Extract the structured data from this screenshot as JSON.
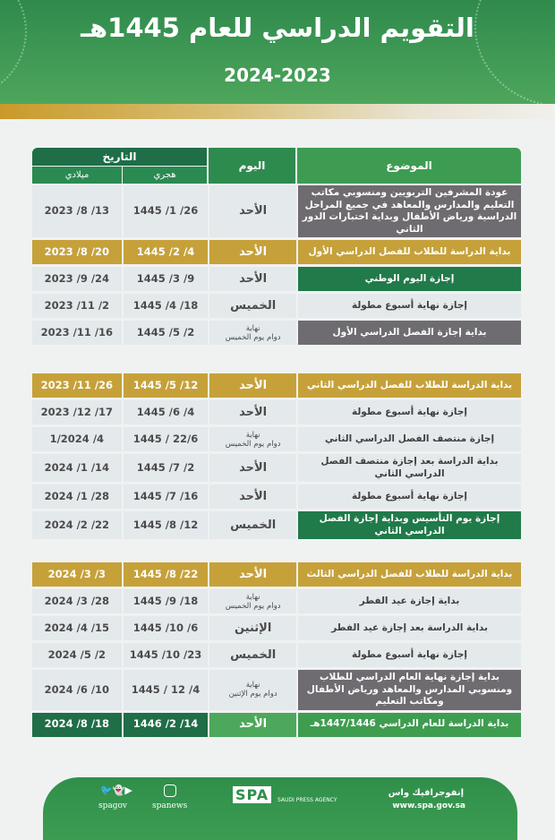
{
  "header": {
    "title": "التقويم الدراسي للعام 1445هـ",
    "years": "2024-2023"
  },
  "columns": {
    "date": "التاريخ",
    "gregorian": "ميلادي",
    "hijri": "هجري",
    "day": "اليوم",
    "topic": "الموضوع"
  },
  "colors": {
    "green": "#2e8b4e",
    "dark_green": "#1f6e48",
    "gold": "#c6a13a",
    "grey": "#6e6c70",
    "row": "#e4e9ec"
  },
  "sections": [
    {
      "rows": [
        {
          "style": "topic-grey",
          "topic": "عودة المشرفين التربويين ومنسوبي مكاتب التعليم والمدارس والمعاهد في جميع المراحل الدراسية ورياض الأطفال وبداية اختبارات الدور الثاني",
          "day": "الأحد",
          "hijri": "26/ 1/ 1445",
          "gregorian": "13/ 8/ 2023"
        },
        {
          "style": "gold",
          "topic": "بداية الدراسة للطلاب للفصل الدراسي الأول",
          "day": "الأحد",
          "hijri": "4/ 2/ 1445",
          "gregorian": "20/ 8/ 2023"
        },
        {
          "style": "topic-green",
          "topic": "إجازة اليوم الوطني",
          "day": "الأحد",
          "hijri": "9/ 3/ 1445",
          "gregorian": "24/ 9/ 2023"
        },
        {
          "style": "plain",
          "topic": "إجازة نهاية أسبوع مطولة",
          "day": "الخميس",
          "hijri": "18/ 4/ 1445",
          "gregorian": "2/ 11/ 2023"
        },
        {
          "style": "topic-grey",
          "topic": "بداية إجازة الفصل الدراسي الأول",
          "day": "نهاية\nدوام يوم الخميس",
          "hijri": "2/ 5/ 1445",
          "gregorian": "16/ 11/ 2023"
        }
      ]
    },
    {
      "rows": [
        {
          "style": "gold",
          "topic": "بداية الدراسة للطلاب للفصل الدراسي الثاني",
          "day": "الأحد",
          "hijri": "12/ 5/ 1445",
          "gregorian": "26/ 11/ 2023"
        },
        {
          "style": "plain",
          "topic": "إجازة نهاية أسبوع مطولة",
          "day": "الأحد",
          "hijri": "4/ 6/ 1445",
          "gregorian": "17/ 12/ 2023"
        },
        {
          "style": "plain",
          "topic": "إجازة منتصف الفصل الدراسي الثاني",
          "day": "نهاية\nدوام يوم الخميس",
          "hijri": "22/6 / 1445",
          "gregorian": "4/ 1/2024"
        },
        {
          "style": "plain",
          "topic": "بداية الدراسة بعد إجازة منتصف الفصل الدراسي الثاني",
          "day": "الأحد",
          "hijri": "2/ 7/ 1445",
          "gregorian": "14/ 1/ 2024"
        },
        {
          "style": "plain",
          "topic": "إجازة نهاية أسبوع مطولة",
          "day": "الأحد",
          "hijri": "16/ 7/ 1445",
          "gregorian": "28/ 1/ 2024"
        },
        {
          "style": "topic-green",
          "topic": "إجازة يوم التأسيس وبداية إجازة الفصل الدراسي الثاني",
          "day": "الخميس",
          "hijri": "12/ 8/ 1445",
          "gregorian": "22/ 2/ 2024"
        }
      ]
    },
    {
      "rows": [
        {
          "style": "gold",
          "topic": "بداية الدراسة للطلاب للفصل الدراسي الثالث",
          "day": "الأحد",
          "hijri": "22/ 8/ 1445",
          "gregorian": "3/ 3/ 2024"
        },
        {
          "style": "plain",
          "topic": "بداية إجازة عيد الفطر",
          "day": "نهاية\nدوام يوم الخميس",
          "hijri": "18/ 9/ 1445",
          "gregorian": "28/ 3/ 2024"
        },
        {
          "style": "plain",
          "topic": "بداية الدراسة بعد إجازة عيد الفطر",
          "day": "الإثنين",
          "hijri": "6/ 10/ 1445",
          "gregorian": "15/ 4/ 2024"
        },
        {
          "style": "plain",
          "topic": "إجازة نهاية أسبوع مطولة",
          "day": "الخميس",
          "hijri": "23/ 10/ 1445",
          "gregorian": "2/ 5/ 2024"
        },
        {
          "style": "topic-grey",
          "topic": "بداية إجازة نهاية العام الدراسي للطلاب ومنسوبي المدارس والمعاهد ورياض الأطفال ومكاتب التعليم",
          "day": "نهاية\nدوام يوم الإثنين",
          "hijri": "4/ 12 / 1445",
          "gregorian": "10/ 6/ 2024"
        },
        {
          "style": "final",
          "topic": "بداية الدراسة للعام الدراسي 1447/1446هـ",
          "day": "الأحد",
          "hijri": "14/ 2/ 1446",
          "gregorian": "18/ 8/ 2024"
        }
      ]
    }
  ],
  "footer": {
    "brand": "إنفوجرافيك واس",
    "url": "www.spa.gov.sa",
    "agency": "SAUDI PRESS AGENCY",
    "logo_text": "SPA",
    "handle_1": "spanews",
    "handle_2": "spagov",
    "icons": [
      "instagram-icon",
      "youtube-icon",
      "snapchat-icon",
      "twitter-icon"
    ]
  }
}
